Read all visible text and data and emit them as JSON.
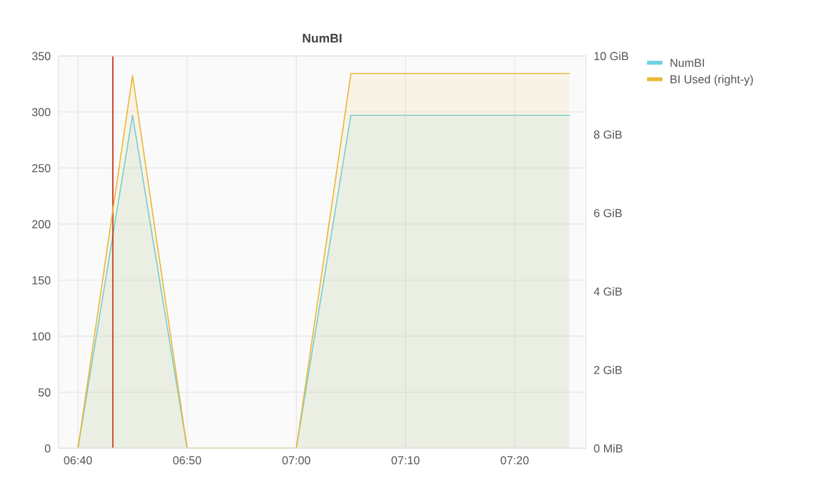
{
  "chart_data": {
    "type": "area",
    "title": "NumBI",
    "x": [
      6.6667,
      6.75,
      6.8333,
      6.9167,
      7.0,
      7.0833,
      7.1667,
      7.25,
      7.3333,
      7.4167
    ],
    "series": [
      {
        "name": "NumBI",
        "color": "#6ed0e0",
        "values": [
          0,
          297,
          0,
          0,
          0,
          297,
          297,
          297,
          297,
          297
        ]
      },
      {
        "name": "BI Used (right-y)",
        "color": "#eab839",
        "axis": "y2",
        "values": [
          0,
          9.5,
          0,
          0,
          0,
          9.55,
          9.55,
          9.55,
          9.55,
          9.55
        ]
      }
    ],
    "xlim": [
      6.637,
      7.442
    ],
    "xticks": [
      {
        "value": 6.6667,
        "label": "06:40"
      },
      {
        "value": 6.8333,
        "label": "06:50"
      },
      {
        "value": 7.0,
        "label": "07:00"
      },
      {
        "value": 7.1667,
        "label": "07:10"
      },
      {
        "value": 7.3333,
        "label": "07:20"
      }
    ],
    "ylim": [
      0,
      350
    ],
    "yticks": [
      0,
      50,
      100,
      150,
      200,
      250,
      300,
      350
    ],
    "y2lim": [
      0,
      10
    ],
    "y2ticks": [
      {
        "value": 0,
        "label": "0 MiB"
      },
      {
        "value": 2,
        "label": "2 GiB"
      },
      {
        "value": 4,
        "label": "4 GiB"
      },
      {
        "value": 6,
        "label": "6 GiB"
      },
      {
        "value": 8,
        "label": "8 GiB"
      },
      {
        "value": 10,
        "label": "10 GiB"
      }
    ],
    "ref_lines": [
      {
        "axis": "x",
        "value": 6.72,
        "color": "#bf1b00"
      }
    ],
    "grid": true,
    "legend": "right",
    "marker": "none",
    "line_style": "solid"
  }
}
